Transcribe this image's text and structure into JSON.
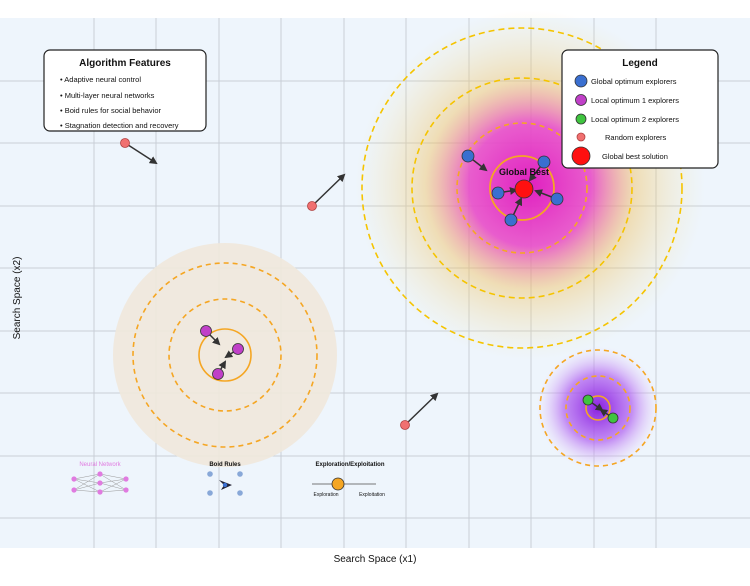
{
  "axes": {
    "xlabel": "Search Space (x1)",
    "ylabel": "Search Space (x2)"
  },
  "features": {
    "title": "Algorithm Features",
    "items": [
      "• Adaptive neural control",
      "• Multi-layer neural networks",
      "• Boid rules for social behavior",
      "• Stagnation detection and recovery"
    ]
  },
  "legend": {
    "title": "Legend",
    "items": [
      {
        "label": "Global optimum explorers",
        "color": "#3a6fd0",
        "kind": "dot"
      },
      {
        "label": "Local optimum 1 explorers",
        "color": "#c040c8",
        "kind": "dot"
      },
      {
        "label": "Local optimum 2 explorers",
        "color": "#3fc43f",
        "kind": "dot"
      },
      {
        "label": "Random explorers",
        "color": "#f07070",
        "kind": "small-dot"
      },
      {
        "label": "Global best solution",
        "color": "#ff1010",
        "kind": "big-dot"
      }
    ]
  },
  "global_best_label": "Global Best",
  "insets": {
    "neural_network": "Neural Network",
    "boid_rules": "Boid Rules",
    "exploration_exploitation": "Exploration/Exploitation",
    "exploration": "Exploration",
    "exploitation": "Exploitation"
  },
  "colors": {
    "background": "#eef5fc",
    "grid": "#c9cfd6",
    "orange_ring": "#f5a623",
    "yellow_ring": "#f5c400",
    "arrow": "#333333",
    "neural": "#e07be0",
    "boid": "#88a8d8"
  }
}
